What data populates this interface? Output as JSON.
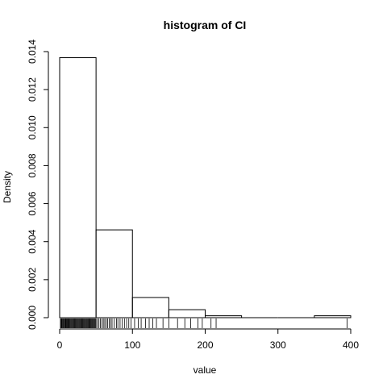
{
  "chart_data": {
    "type": "bar",
    "title": "histogram of CI",
    "xlabel": "value",
    "ylabel": "Density",
    "xlim": [
      0,
      400
    ],
    "ylim": [
      0,
      0.014
    ],
    "x_ticks": [
      0,
      100,
      200,
      300,
      400
    ],
    "x_tick_labels": [
      "0",
      "100",
      "200",
      "300",
      "400"
    ],
    "y_ticks": [
      0,
      0.002,
      0.004,
      0.006,
      0.008,
      0.01,
      0.012,
      0.014
    ],
    "y_tick_labels": [
      "0.000",
      "0.002",
      "0.004",
      "0.006",
      "0.008",
      "0.010",
      "0.012",
      "0.014"
    ],
    "bins": [
      {
        "x0": 0,
        "x1": 50,
        "density": 0.01368
      },
      {
        "x0": 50,
        "x1": 100,
        "density": 0.00462
      },
      {
        "x0": 100,
        "x1": 150,
        "density": 0.00106
      },
      {
        "x0": 150,
        "x1": 200,
        "density": 0.00042
      },
      {
        "x0": 200,
        "x1": 250,
        "density": 0.0001
      },
      {
        "x0": 250,
        "x1": 300,
        "density": 0.0
      },
      {
        "x0": 300,
        "x1": 350,
        "density": 0.0
      },
      {
        "x0": 350,
        "x1": 400,
        "density": 0.0001
      }
    ],
    "rug": [
      1,
      2,
      2.5,
      3,
      4,
      5,
      5.5,
      6,
      7,
      8,
      8.5,
      9,
      10,
      11,
      12,
      12.5,
      13,
      14,
      15,
      16,
      17,
      18,
      19,
      20,
      21,
      22,
      23,
      24,
      25,
      26,
      27,
      28,
      29,
      30,
      31,
      32,
      33,
      34,
      35,
      36,
      37,
      38,
      39,
      40,
      41,
      42,
      43,
      44,
      45,
      46,
      47,
      48,
      49,
      50,
      52,
      54,
      56,
      58,
      60,
      62,
      64,
      66,
      68,
      70,
      72,
      75,
      78,
      80,
      83,
      86,
      89,
      92,
      95,
      98,
      103,
      108,
      112,
      118,
      123,
      128,
      133,
      142,
      150,
      162,
      172,
      180,
      190,
      196,
      208,
      215,
      395
    ]
  }
}
